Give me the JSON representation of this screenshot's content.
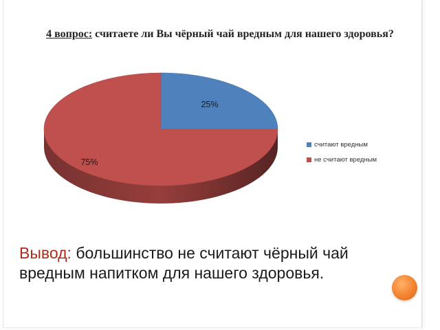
{
  "slide": {
    "title_prefix": "4 вопрос:",
    "title_text": " считаете ли Вы чёрный чай вредным для нашего здоровья?",
    "conclusion_label": "Вывод:",
    "conclusion_text": " большинство не считают чёрный чай вредным напитком для нашего здоровья."
  },
  "chart_data": {
    "type": "pie",
    "style": "3d",
    "categories": [
      "считают вредным",
      "не считают вредным"
    ],
    "values": [
      25,
      75
    ],
    "data_labels": [
      "25%",
      "75%"
    ],
    "colors": [
      "#4f81bd",
      "#c0504d"
    ],
    "legend": "right"
  }
}
